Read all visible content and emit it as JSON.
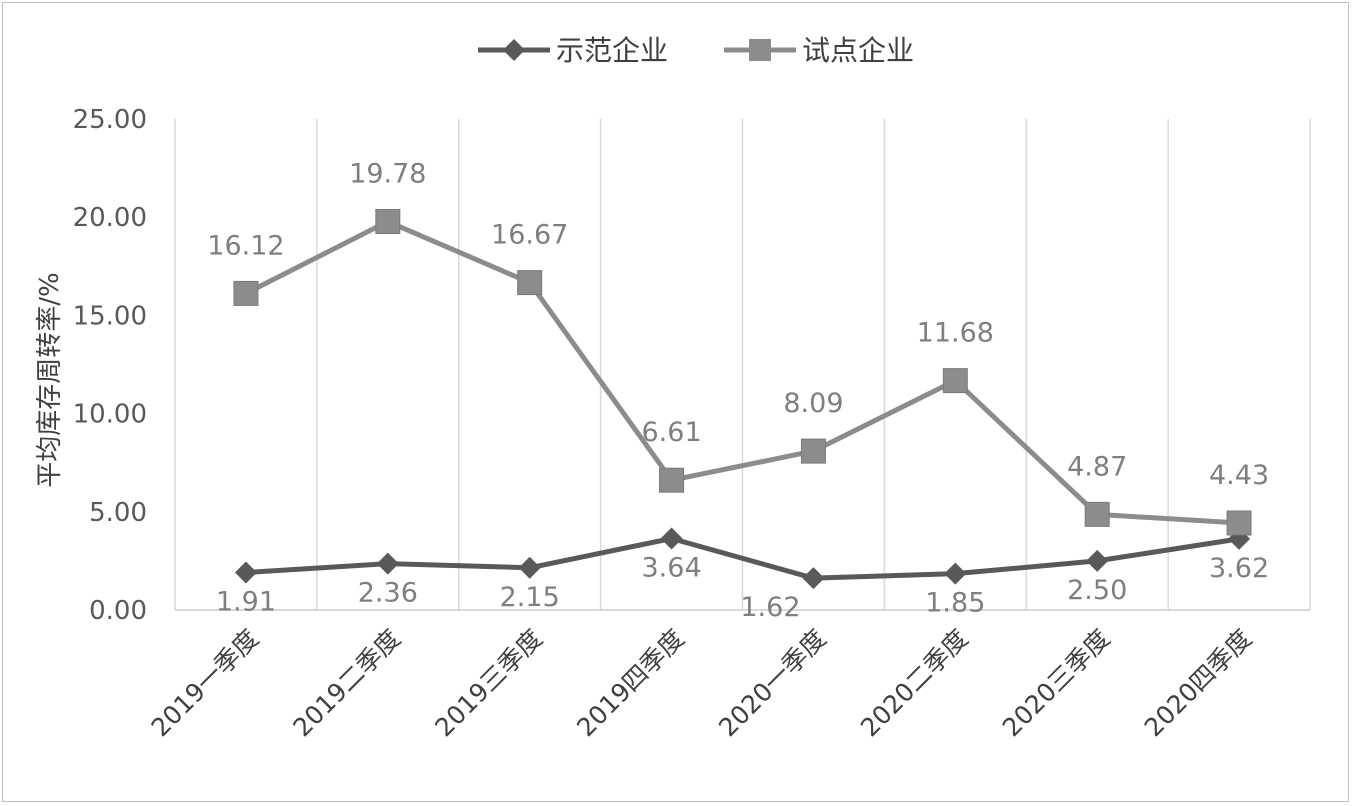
{
  "chart_data": {
    "type": "line",
    "categories": [
      "2019一季度",
      "2019二季度",
      "2019三季度",
      "2019四季度",
      "2020一季度",
      "2020二季度",
      "2020三季度",
      "2020四季度"
    ],
    "ylabel": "平均库存周转率/%",
    "ylim": [
      0,
      25
    ],
    "yticks": [
      0,
      5,
      10,
      15,
      20,
      25
    ],
    "ytick_labels": [
      "0.00",
      "5.00",
      "10.00",
      "15.00",
      "20.00",
      "25.00"
    ],
    "grid": "vertical category separators",
    "legend_position": "top",
    "series": [
      {
        "name": "示范企业",
        "marker": "diamond",
        "color": "#595959",
        "values": [
          1.91,
          2.36,
          2.15,
          3.64,
          1.62,
          1.85,
          2.5,
          3.62
        ],
        "labels": [
          "1.91",
          "2.36",
          "2.15",
          "3.64",
          "1.62",
          "1.85",
          "2.50",
          "3.62"
        ]
      },
      {
        "name": "试点企业",
        "marker": "square",
        "color": "#8c8c8c",
        "values": [
          16.12,
          19.78,
          16.67,
          6.61,
          8.09,
          11.68,
          4.87,
          4.43
        ],
        "labels": [
          "16.12",
          "19.78",
          "16.67",
          "6.61",
          "8.09",
          "11.68",
          "4.87",
          "4.43"
        ]
      }
    ]
  }
}
